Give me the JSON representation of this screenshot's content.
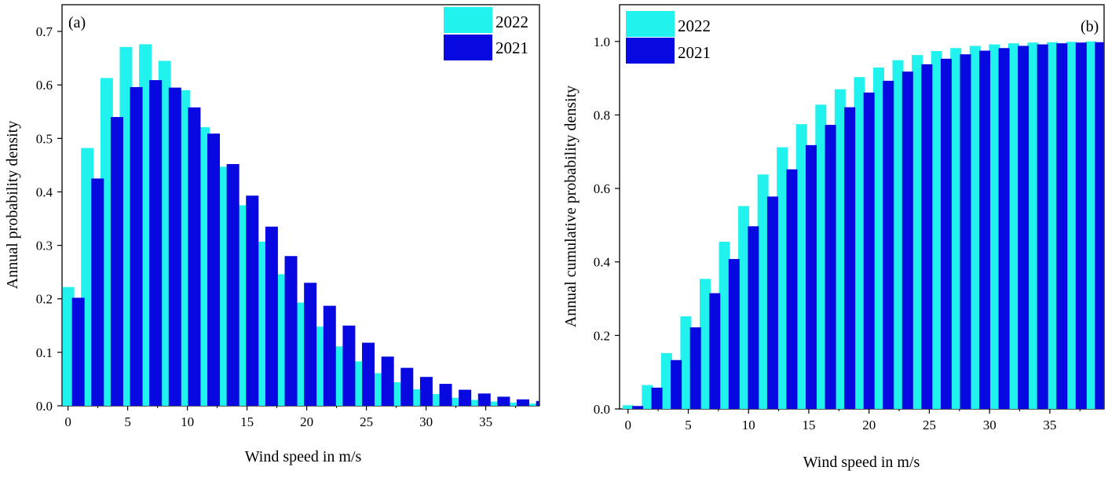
{
  "colors": {
    "s2022": "#22f2ee",
    "s2021": "#0808e0",
    "axis": "#000000"
  },
  "chart_data": [
    {
      "type": "bar",
      "panel_label": "(a)",
      "xlabel": "Wind speed in m/s",
      "ylabel": "Annual probability density",
      "xlim": [
        -0.5,
        39.5
      ],
      "ylim": [
        0,
        0.75
      ],
      "xticks": [
        0,
        5,
        10,
        15,
        20,
        25,
        30,
        35
      ],
      "yticks": [
        0.0,
        0.1,
        0.2,
        0.3,
        0.4,
        0.5,
        0.6,
        0.7
      ],
      "ytick_labels": [
        "0.0",
        "0.1",
        "0.2",
        "0.3",
        "0.4",
        "0.5",
        "0.6",
        "0.7"
      ],
      "legend": [
        "2022",
        "2021"
      ],
      "legend_position": "top-right",
      "grid": false,
      "series": [
        {
          "name": "2022",
          "x": [
            0,
            1.62,
            3.24,
            4.86,
            6.48,
            8.1,
            9.72,
            11.34,
            12.96,
            14.58,
            16.2,
            17.82,
            19.44,
            21.06,
            22.68,
            24.3,
            25.92,
            27.54,
            29.16,
            30.78,
            32.4,
            34.02,
            35.64,
            37.26,
            38.88
          ],
          "values": [
            0.222,
            0.482,
            0.613,
            0.671,
            0.676,
            0.645,
            0.59,
            0.521,
            0.447,
            0.375,
            0.307,
            0.246,
            0.193,
            0.148,
            0.111,
            0.083,
            0.061,
            0.044,
            0.031,
            0.022,
            0.015,
            0.011,
            0.008,
            0.006,
            0.004
          ]
        },
        {
          "name": "2021",
          "x": [
            0.86,
            2.48,
            4.1,
            5.72,
            7.34,
            8.96,
            10.58,
            12.2,
            13.82,
            15.44,
            17.06,
            18.68,
            20.3,
            21.92,
            23.54,
            25.16,
            26.78,
            28.4,
            30.02,
            31.64,
            33.26,
            34.88,
            36.5,
            38.12,
            39.74
          ],
          "values": [
            0.202,
            0.425,
            0.54,
            0.596,
            0.609,
            0.595,
            0.558,
            0.509,
            0.452,
            0.393,
            0.335,
            0.28,
            0.23,
            0.187,
            0.15,
            0.118,
            0.092,
            0.071,
            0.054,
            0.041,
            0.03,
            0.023,
            0.017,
            0.012,
            0.009
          ]
        }
      ]
    },
    {
      "type": "bar",
      "panel_label": "(b)",
      "xlabel": "Wind speed in m/s",
      "ylabel": "Annual cumulative probability density",
      "xlim": [
        -0.7,
        39.5
      ],
      "ylim": [
        0,
        1.1
      ],
      "xticks": [
        0,
        5,
        10,
        15,
        20,
        25,
        30,
        35
      ],
      "yticks": [
        0.0,
        0.2,
        0.4,
        0.6,
        0.8,
        1.0
      ],
      "ytick_labels": [
        "0.0",
        "0.2",
        "0.4",
        "0.6",
        "0.8",
        "1.0"
      ],
      "legend": [
        "2022",
        "2021"
      ],
      "legend_position": "top-left",
      "grid": false,
      "series": [
        {
          "name": "2022",
          "x": [
            0,
            1.6,
            3.2,
            4.8,
            6.4,
            8.0,
            9.6,
            11.2,
            12.8,
            14.4,
            16.0,
            17.6,
            19.2,
            20.8,
            22.4,
            24.0,
            25.6,
            27.2,
            28.8,
            30.4,
            32.0,
            33.6,
            35.2,
            36.8,
            38.4
          ],
          "values": [
            0.01,
            0.065,
            0.152,
            0.252,
            0.354,
            0.455,
            0.552,
            0.638,
            0.712,
            0.775,
            0.828,
            0.87,
            0.903,
            0.929,
            0.949,
            0.963,
            0.974,
            0.982,
            0.988,
            0.992,
            0.995,
            0.997,
            0.998,
            0.999,
            1.0
          ]
        },
        {
          "name": "2021",
          "x": [
            0.8,
            2.4,
            4.0,
            5.6,
            7.2,
            8.8,
            10.4,
            12.0,
            13.6,
            15.2,
            16.8,
            18.4,
            20.0,
            21.6,
            23.2,
            24.8,
            26.4,
            28.0,
            29.6,
            31.2,
            32.8,
            34.4,
            36.0,
            37.6,
            39.2
          ],
          "values": [
            0.008,
            0.058,
            0.133,
            0.222,
            0.315,
            0.408,
            0.497,
            0.578,
            0.652,
            0.718,
            0.773,
            0.821,
            0.861,
            0.893,
            0.918,
            0.938,
            0.953,
            0.965,
            0.975,
            0.982,
            0.988,
            0.992,
            0.995,
            0.997,
            0.998
          ]
        }
      ]
    }
  ]
}
